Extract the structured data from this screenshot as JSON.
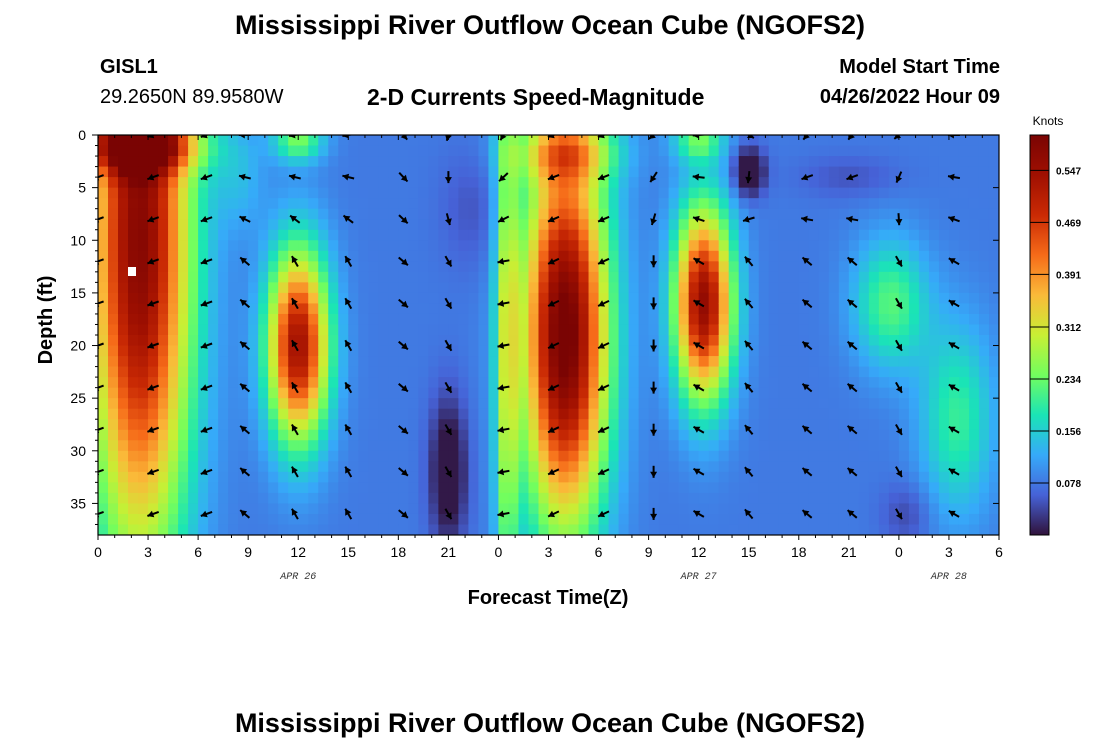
{
  "header": {
    "title": "Mississippi River Outflow Ocean Cube (NGOFS2)",
    "station": "GISL1",
    "coords": "29.2650N  89.9580W",
    "subtitle": "2-D Currents Speed-Magnitude",
    "model_label": "Model Start Time",
    "model_time": "04/26/2022 Hour 09"
  },
  "footer": {
    "title": "Mississippi River Outflow Ocean Cube (NGOFS2)"
  },
  "chart_data": {
    "type": "heatmap",
    "title": "2-D Currents Speed-Magnitude",
    "xlabel": "Forecast Time(Z)",
    "ylabel": "Depth (ft)",
    "x_tick_labels": [
      "0",
      "3",
      "6",
      "9",
      "12",
      "15",
      "18",
      "21",
      "0",
      "3",
      "6",
      "9",
      "12",
      "15",
      "18",
      "21",
      "0",
      "3",
      "6"
    ],
    "x_range_hours": [
      0,
      54
    ],
    "y_ticks": [
      0,
      5,
      10,
      15,
      20,
      25,
      30,
      35
    ],
    "y_range": [
      0,
      38
    ],
    "y_reversed": true,
    "date_labels": [
      {
        "text": "APR 26",
        "hour": 12
      },
      {
        "text": "APR 27",
        "hour": 36
      },
      {
        "text": "APR 28",
        "hour": 51
      }
    ],
    "colorbar": {
      "unit": "Knots",
      "ticks": [
        0.078,
        0.156,
        0.234,
        0.312,
        0.391,
        0.469,
        0.547
      ],
      "range": [
        0,
        0.6
      ],
      "colormap": "turbo"
    },
    "vector_rows_depth": [
      0,
      4,
      8,
      12,
      16,
      20,
      24,
      28,
      32,
      36
    ],
    "vector_cols_hour": [
      0,
      3.3,
      6.5,
      8.8,
      11.8,
      15,
      18.3,
      21,
      24.3,
      27.3,
      30.3,
      33.3,
      36,
      39,
      42.5,
      45.2,
      48,
      51.3
    ],
    "speed_features": [
      {
        "h": 2.5,
        "d": 10,
        "sh": 3.0,
        "sd": 30,
        "v": 0.5
      },
      {
        "h": 2.5,
        "d": 1,
        "sh": 3.5,
        "sd": 2.5,
        "v": 0.28
      },
      {
        "h": 12,
        "d": 20,
        "sh": 1.8,
        "sd": 9,
        "v": 0.46
      },
      {
        "h": 12,
        "d": 0.5,
        "sh": 1.5,
        "sd": 2,
        "v": 0.16
      },
      {
        "h": 28,
        "d": 19,
        "sh": 2.5,
        "sd": 18,
        "v": 0.54
      },
      {
        "h": 28,
        "d": 1.5,
        "sh": 3,
        "sd": 3,
        "v": 0.18
      },
      {
        "h": 36.3,
        "d": 16,
        "sh": 1.7,
        "sd": 9,
        "v": 0.48
      },
      {
        "h": 36,
        "d": 0.5,
        "sh": 1.5,
        "sd": 2,
        "v": 0.14
      },
      {
        "h": 47.5,
        "d": 16,
        "sh": 2.2,
        "sd": 6,
        "v": 0.14
      },
      {
        "h": 51.5,
        "d": 27,
        "sh": 2.2,
        "sd": 9,
        "v": 0.12
      },
      {
        "h": 24.5,
        "d": 20,
        "sh": 0.7,
        "sd": 30,
        "v": 0.18
      },
      {
        "h": 8.5,
        "d": 4,
        "sh": 1.5,
        "sd": 5,
        "v": 0.05
      }
    ],
    "slow_features": [
      {
        "h": 21,
        "d": 32,
        "sh": 1.1,
        "sd": 7,
        "v": 0.11
      },
      {
        "h": 22.5,
        "d": 7,
        "sh": 2,
        "sd": 6,
        "v": 0.03
      },
      {
        "h": 39,
        "d": 3.5,
        "sh": 0.9,
        "sd": 2.2,
        "v": 0.14
      },
      {
        "h": 45,
        "d": 4,
        "sh": 3,
        "sd": 2,
        "v": 0.03
      },
      {
        "h": 48.5,
        "d": 36,
        "sh": 1.5,
        "sd": 3,
        "v": 0.04
      }
    ],
    "base_speed": 0.08,
    "direction_segments": [
      {
        "from": 0,
        "to": 7,
        "surface": 200,
        "deep": 200
      },
      {
        "from": 7,
        "to": 10,
        "surface": 180,
        "deep": 140
      },
      {
        "from": 10,
        "to": 16.5,
        "surface": 190,
        "deep": 120
      },
      {
        "from": 16.5,
        "to": 19,
        "surface": 310,
        "deep": 320
      },
      {
        "from": 19,
        "to": 23,
        "surface": 255,
        "deep": 300
      },
      {
        "from": 23,
        "to": 25.5,
        "surface": 240,
        "deep": 190
      },
      {
        "from": 25.5,
        "to": 31,
        "surface": 200,
        "deep": 205
      },
      {
        "from": 31,
        "to": 34.5,
        "surface": 220,
        "deep": 270
      },
      {
        "from": 34.5,
        "to": 37.5,
        "surface": 185,
        "deep": 150
      },
      {
        "from": 37.5,
        "to": 40.5,
        "surface": 330,
        "deep": 130
      },
      {
        "from": 40.5,
        "to": 46.5,
        "surface": 230,
        "deep": 140
      },
      {
        "from": 46.5,
        "to": 49,
        "surface": 220,
        "deep": 300
      },
      {
        "from": 49,
        "to": 55,
        "surface": 180,
        "deep": 150
      }
    ]
  }
}
